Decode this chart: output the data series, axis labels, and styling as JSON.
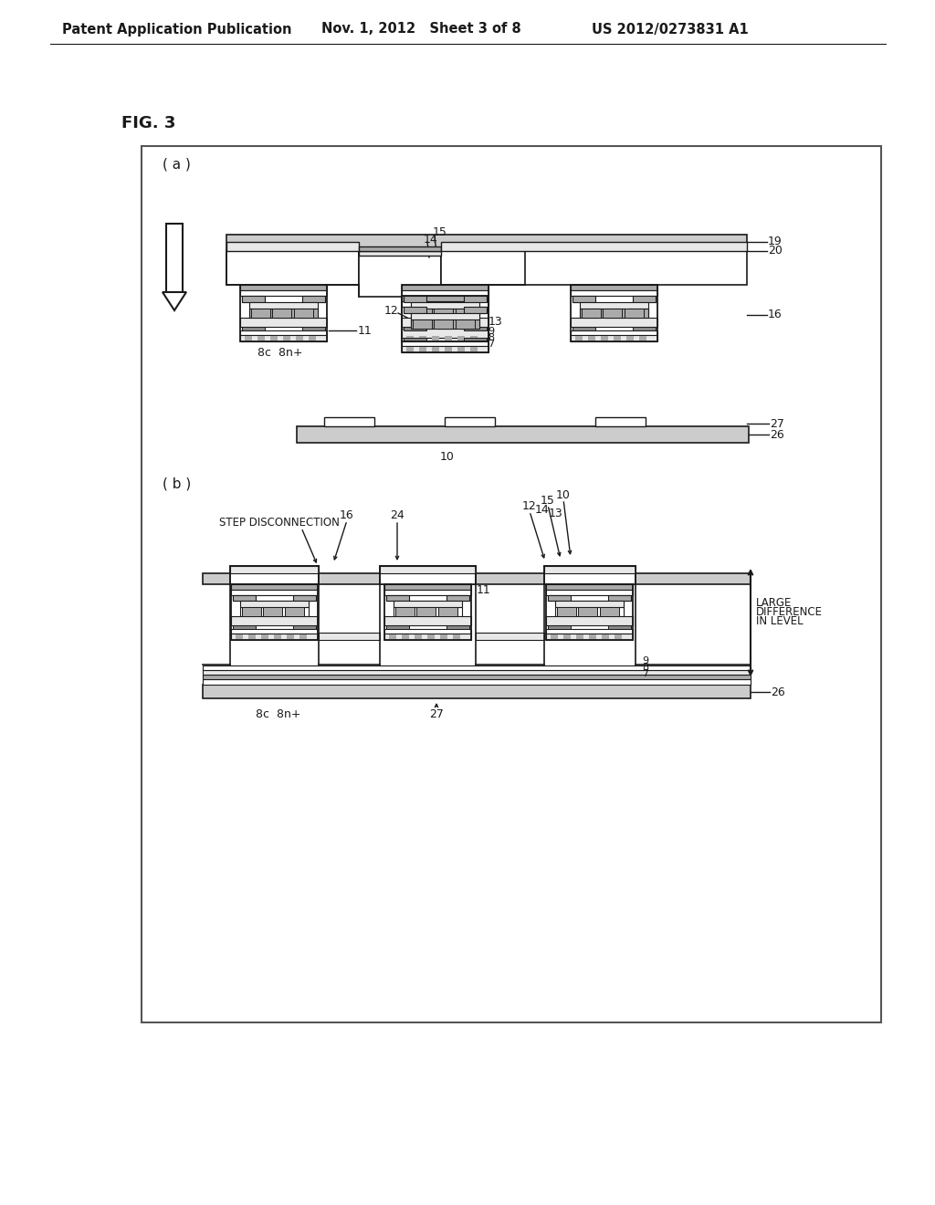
{
  "bg": "#ffffff",
  "lc": "#1a1a1a",
  "gray1": "#cccccc",
  "gray2": "#aaaaaa",
  "gray3": "#888888",
  "gray4": "#e8e8e8",
  "header_left": "Patent Application Publication",
  "header_mid": "Nov. 1, 2012   Sheet 3 of 8",
  "header_right": "US 2012/0273831 A1",
  "fig_label": "FIG. 3",
  "sub_a": "( a )",
  "sub_b": "( b )"
}
